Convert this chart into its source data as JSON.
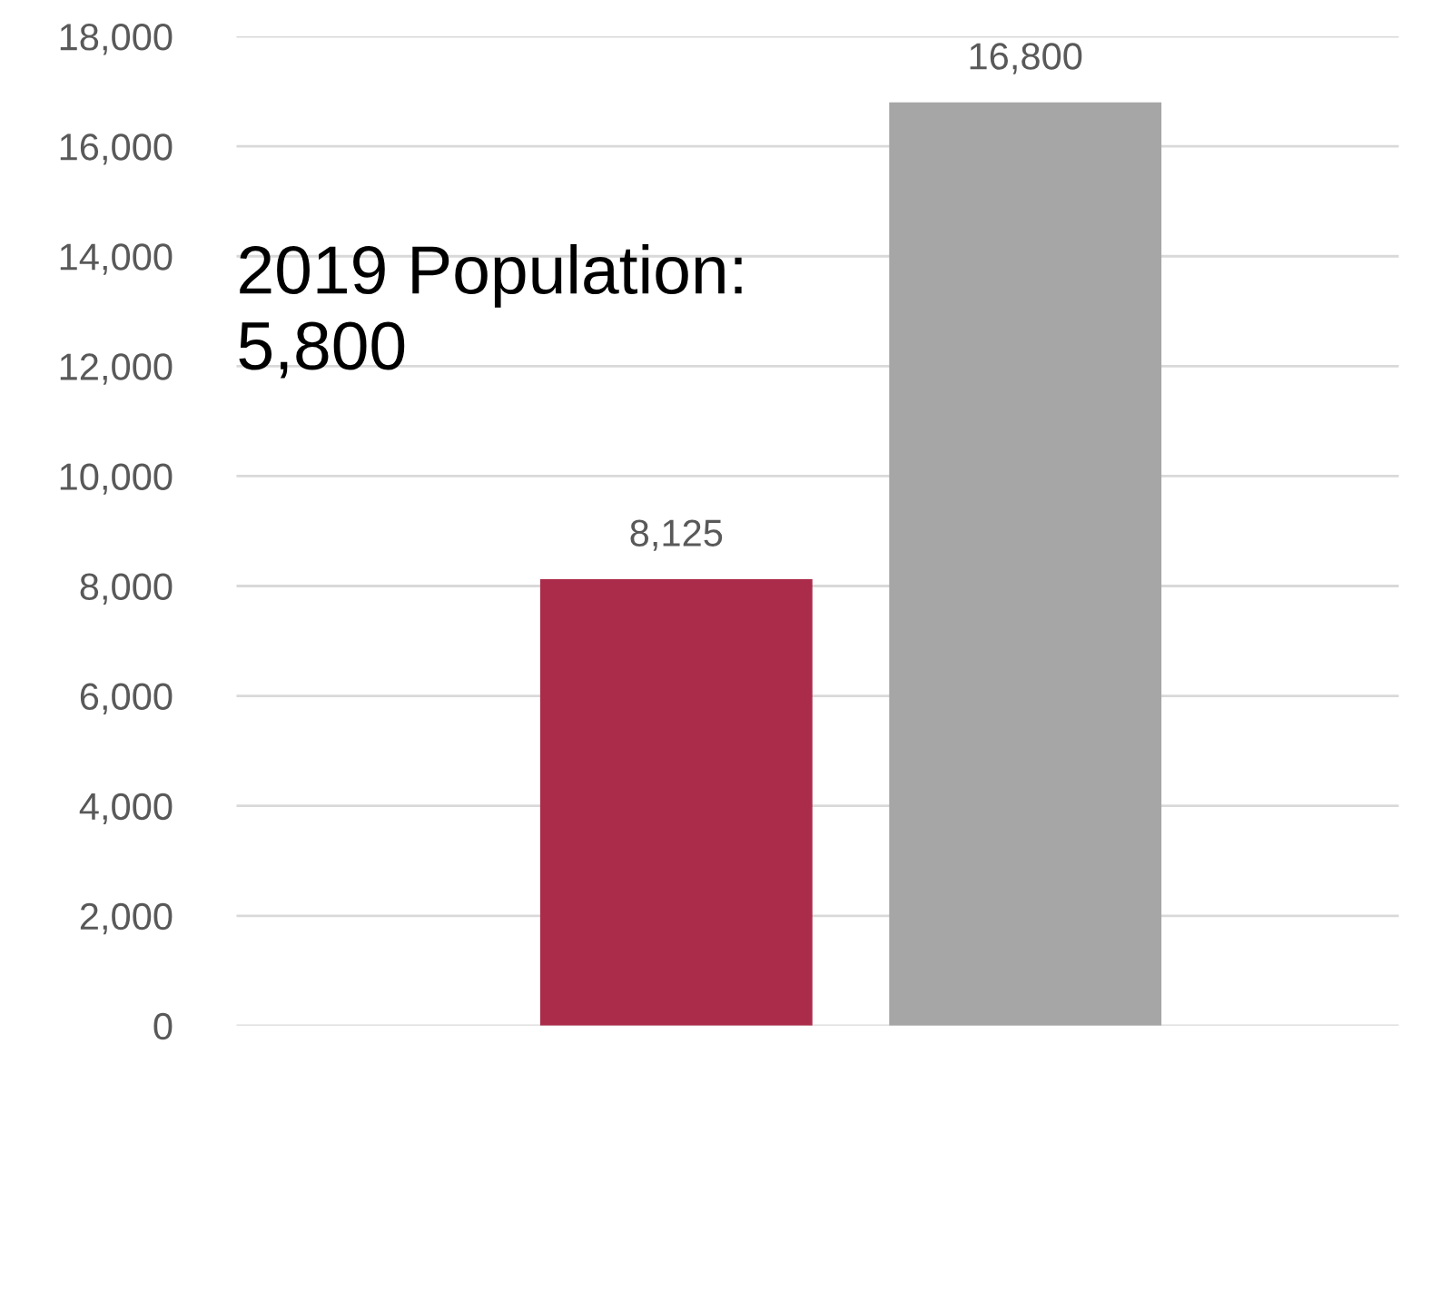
{
  "chart_data": {
    "type": "bar",
    "categories": [
      null,
      null
    ],
    "values": [
      8125,
      16800
    ],
    "colors": [
      "#ab2c4a",
      "#a6a6a6"
    ],
    "value_labels": [
      "8,125",
      "16,800"
    ],
    "annotations": [
      "2019 Population:\n5,800"
    ],
    "ylim": [
      0,
      18000
    ],
    "yticks": [
      0,
      {
        "value": 2000,
        "label": "2,000"
      },
      {
        "value": 4000,
        "label": "4,000"
      },
      {
        "value": 6000,
        "label": "6,000"
      },
      {
        "value": 8000,
        "label": "8,000"
      },
      {
        "value": 10000,
        "label": "10,000"
      },
      {
        "value": 12000,
        "label": "12,000"
      },
      {
        "value": 14000,
        "label": "14,000"
      },
      {
        "value": 16000,
        "label": "16,000"
      },
      {
        "value": 18000,
        "label": "18,000"
      }
    ],
    "grid": "y",
    "legend": false
  }
}
